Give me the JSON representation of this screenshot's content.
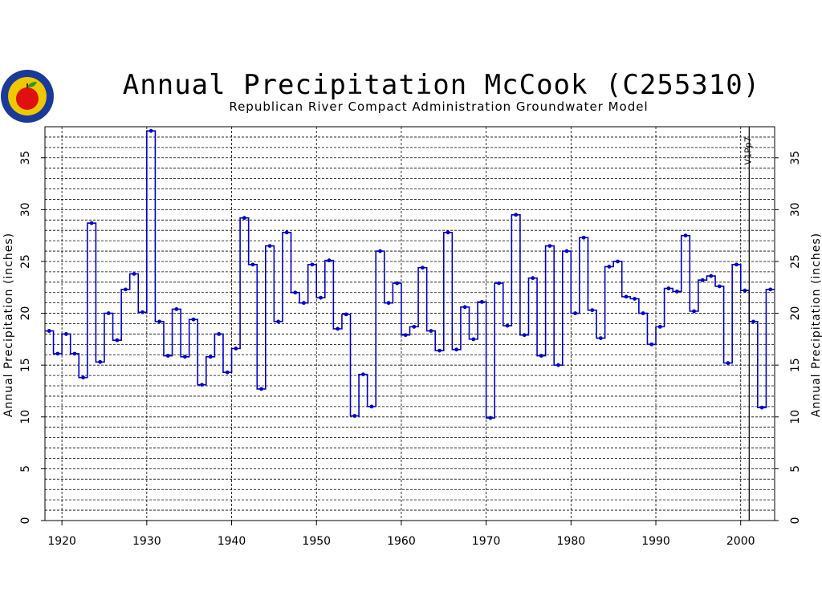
{
  "title": "Annual Precipitation McCook (C255310)",
  "subtitle": "Republican River Compact Administration Groundwater Model",
  "colors": {
    "series": "#0000cc",
    "grid": "#000000",
    "logo_ring": "#1a3a9a",
    "logo_fill": "#f0c800",
    "apple": "#e01010"
  },
  "chart_data": {
    "type": "line",
    "step": true,
    "title": "Annual Precipitation McCook (C255310)",
    "subtitle": "Republican River Compact Administration Groundwater Model",
    "ylabel": "Annual Precipitation (inches)",
    "xlabel": "",
    "xlim": [
      1918,
      2004
    ],
    "ylim": [
      0,
      38
    ],
    "xticks": [
      1920,
      1930,
      1940,
      1950,
      1960,
      1970,
      1980,
      1990,
      2000
    ],
    "yticks": [
      0,
      5,
      10,
      15,
      20,
      25,
      30,
      35
    ],
    "grid": true,
    "annotations": [
      {
        "x": 2001,
        "text": "V1Pp7"
      }
    ],
    "x": [
      1918,
      1919,
      1920,
      1921,
      1922,
      1923,
      1924,
      1925,
      1926,
      1927,
      1928,
      1929,
      1930,
      1931,
      1932,
      1933,
      1934,
      1935,
      1936,
      1937,
      1938,
      1939,
      1940,
      1941,
      1942,
      1943,
      1944,
      1945,
      1946,
      1947,
      1948,
      1949,
      1950,
      1951,
      1952,
      1953,
      1954,
      1955,
      1956,
      1957,
      1958,
      1959,
      1960,
      1961,
      1962,
      1963,
      1964,
      1965,
      1966,
      1967,
      1968,
      1969,
      1970,
      1971,
      1972,
      1973,
      1974,
      1975,
      1976,
      1977,
      1978,
      1979,
      1980,
      1981,
      1982,
      1983,
      1984,
      1985,
      1986,
      1987,
      1988,
      1989,
      1990,
      1991,
      1992,
      1993,
      1994,
      1995,
      1996,
      1997,
      1998,
      1999,
      2000,
      2001,
      2002,
      2003
    ],
    "values": [
      18.3,
      16.1,
      18.0,
      16.1,
      13.8,
      28.7,
      15.3,
      20.0,
      17.4,
      22.3,
      23.8,
      20.1,
      37.6,
      19.2,
      15.9,
      20.4,
      15.8,
      19.4,
      13.1,
      15.8,
      18.0,
      14.3,
      16.6,
      29.2,
      24.7,
      12.7,
      26.5,
      19.2,
      27.8,
      22.0,
      21.0,
      24.7,
      21.5,
      25.1,
      18.5,
      19.9,
      10.1,
      14.1,
      11.0,
      26.0,
      21.0,
      22.9,
      17.9,
      18.7,
      24.4,
      18.3,
      16.4,
      27.8,
      16.5,
      20.6,
      17.5,
      21.1,
      9.9,
      22.9,
      18.8,
      29.5,
      17.9,
      23.4,
      15.9,
      26.5,
      15.0,
      26.0,
      20.0,
      27.3,
      20.3,
      17.6,
      24.5,
      25.0,
      21.6,
      21.4,
      20.0,
      17.0,
      18.7,
      22.4,
      22.1,
      27.5,
      20.2,
      23.2,
      23.6,
      22.6,
      15.2,
      24.7,
      22.2,
      19.2,
      10.9,
      22.3
    ]
  }
}
